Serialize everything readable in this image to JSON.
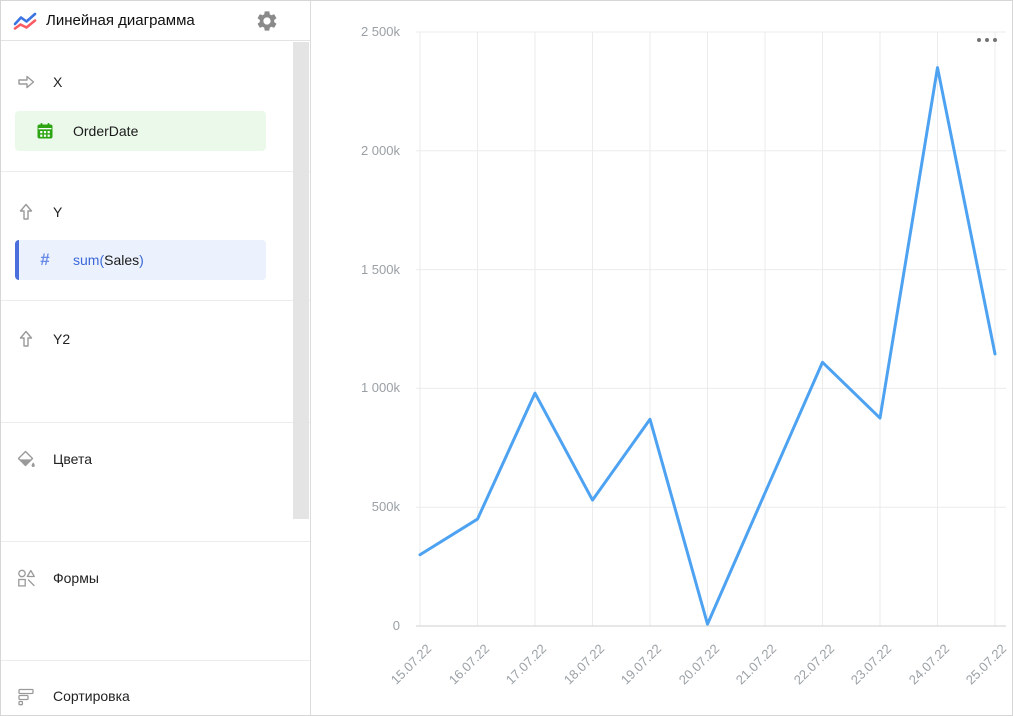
{
  "header": {
    "title": "Линейная диаграмма"
  },
  "sidebar": {
    "sections": {
      "x": {
        "label": "X"
      },
      "y": {
        "label": "Y"
      },
      "y2": {
        "label": "Y2"
      },
      "colors": {
        "label": "Цвета"
      },
      "shapes": {
        "label": "Формы"
      },
      "sorting": {
        "label": "Сортировка"
      }
    },
    "fields": {
      "order_date": {
        "label": "OrderDate"
      },
      "sum_sales": {
        "prefix": "sum(",
        "field": "Sales",
        "suffix": ")"
      }
    }
  },
  "chart_data": {
    "type": "line",
    "title": "",
    "xlabel": "",
    "ylabel": "",
    "x_categories": [
      "15.07.22",
      "16.07.22",
      "17.07.22",
      "18.07.22",
      "19.07.22",
      "20.07.22",
      "21.07.22",
      "22.07.22",
      "23.07.22",
      "24.07.22",
      "25.07.22"
    ],
    "series": [
      {
        "name": "sum(Sales)",
        "values": [
          300000,
          450000,
          980000,
          530000,
          870000,
          8000,
          560000,
          1110000,
          875000,
          2350000,
          1145000
        ]
      }
    ],
    "ylim": [
      0,
      2500000
    ],
    "ytick_step": 500000,
    "ytick_labels": [
      "0",
      "500k",
      "1 000k",
      "1 500k",
      "2 000k",
      "2 500k"
    ],
    "grid": true,
    "legend": false,
    "line_color": "#4da2f1",
    "grid_color": "#ebebeb",
    "axis_line_color": "#cfcfcf",
    "tick_text_color": "#9aa0a5"
  }
}
